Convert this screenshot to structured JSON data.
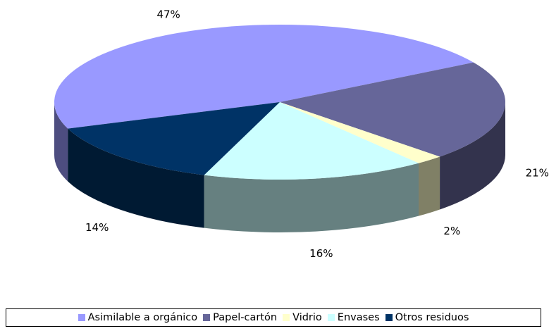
{
  "chart_data": {
    "type": "pie3d",
    "categories": [
      "Asimilable a orgánico",
      "Papel-cartón",
      "Vidrio",
      "Envases",
      "Otros residuos"
    ],
    "values": [
      47,
      21,
      2,
      16,
      14
    ],
    "value_labels": [
      "47%",
      "21%",
      "2%",
      "16%",
      "14%"
    ],
    "colors": [
      "#9999ff",
      "#666699",
      "#ffffcc",
      "#ccffff",
      "#003366"
    ],
    "legend": "bottom"
  }
}
